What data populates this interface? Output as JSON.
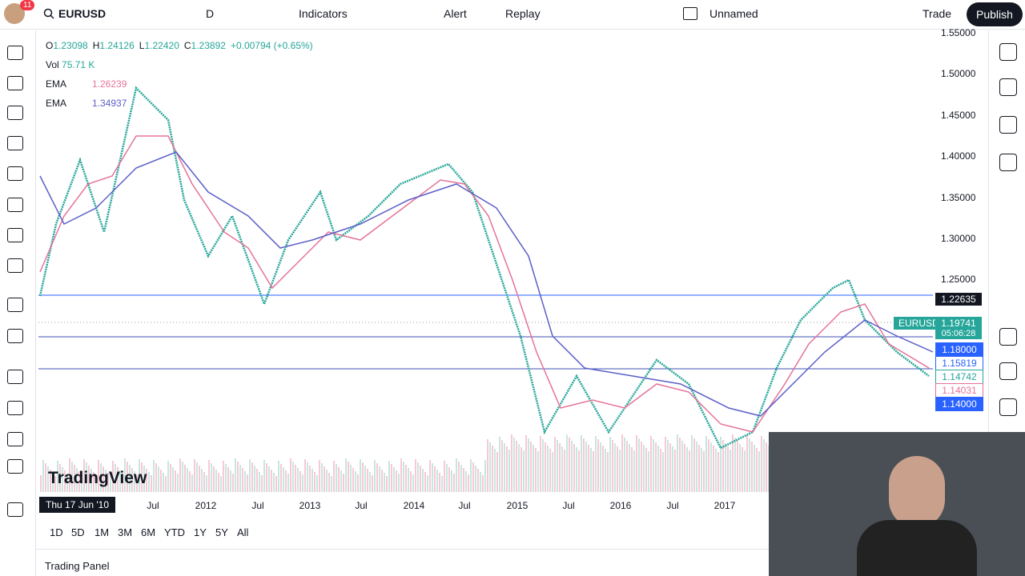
{
  "toolbar": {
    "badge": "11",
    "symbol": "EURUSD",
    "interval": "D",
    "indicators": "Indicators",
    "alert": "Alert",
    "replay": "Replay",
    "layout": "Unnamed",
    "trade": "Trade",
    "publish": "Publish"
  },
  "legend": {
    "ohlc": [
      {
        "label": "O",
        "value": "1.23098"
      },
      {
        "label": "H",
        "value": "1.24126"
      },
      {
        "label": "L",
        "value": "1.22420"
      },
      {
        "label": "C",
        "value": "1.23892"
      }
    ],
    "change": "+0.00794 (+0.65%)",
    "volume": {
      "label": "Vol",
      "value": "75.71 K"
    },
    "indicators": [
      {
        "label": "EMA",
        "value": "1.26239"
      },
      {
        "label": "EMA",
        "value": "1.34937"
      }
    ]
  },
  "price_axis": [
    "1.55000",
    "1.50000",
    "1.45000",
    "1.40000",
    "1.35000",
    "1.30000",
    "1.25000"
  ],
  "price_tags": {
    "crosshair": "1.22635",
    "symbol": "EURUSD",
    "last": "1.19741",
    "countdown": "05:06:28",
    "levels": [
      "1.18000",
      "1.15819",
      "1.14742",
      "1.14031",
      "1.14000"
    ]
  },
  "time_axis": {
    "cursor": "Thu 17 Jun '10",
    "labels": [
      "Jul",
      "2012",
      "Jul",
      "2013",
      "Jul",
      "2014",
      "Jul",
      "2015",
      "Jul",
      "2016",
      "Jul",
      "2017"
    ]
  },
  "watermark": "TradingView",
  "ranges": [
    "1D",
    "5D",
    "1M",
    "3M",
    "6M",
    "YTD",
    "1Y",
    "5Y",
    "All"
  ],
  "panel": "Trading Panel"
}
